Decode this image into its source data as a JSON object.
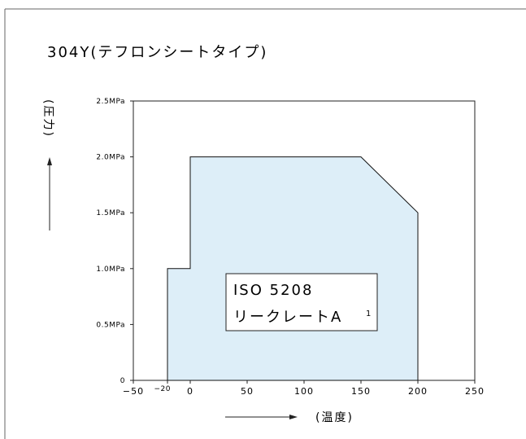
{
  "chart_data": {
    "type": "area",
    "title": "304Y(テフロンシートタイプ)",
    "xlabel": "(温度)",
    "ylabel": "(圧力)",
    "xlim": [
      -50,
      250
    ],
    "ylim": [
      0,
      2.5
    ],
    "x_ticks": [
      {
        "value": -50,
        "label": "−50"
      },
      {
        "value": -20,
        "label": "−20"
      },
      {
        "value": 0,
        "label": "0"
      },
      {
        "value": 50,
        "label": "50"
      },
      {
        "value": 100,
        "label": "100"
      },
      {
        "value": 150,
        "label": "150"
      },
      {
        "value": 200,
        "label": "200"
      },
      {
        "value": 250,
        "label": "250"
      }
    ],
    "y_ticks": [
      {
        "value": 0,
        "label": "0"
      },
      {
        "value": 0.5,
        "label": "0.5MPa"
      },
      {
        "value": 1.0,
        "label": "1.0MPa"
      },
      {
        "value": 1.5,
        "label": "1.5MPa"
      },
      {
        "value": 2.0,
        "label": "2.0MPa"
      },
      {
        "value": 2.5,
        "label": "2.5MPa"
      }
    ],
    "series": [
      {
        "points": [
          {
            "x": -20,
            "y": 0
          },
          {
            "x": -20,
            "y": 1.0
          },
          {
            "x": 0,
            "y": 1.0
          },
          {
            "x": 0,
            "y": 2.0
          },
          {
            "x": 150,
            "y": 2.0
          },
          {
            "x": 200,
            "y": 1.5
          },
          {
            "x": 200,
            "y": 0
          }
        ],
        "fill": "#ddeef8",
        "stroke": "#111111"
      }
    ],
    "annotations": [
      {
        "line1": "ISO 5208",
        "line2": "リークレートA",
        "superscript": "1"
      }
    ],
    "grid": false
  }
}
